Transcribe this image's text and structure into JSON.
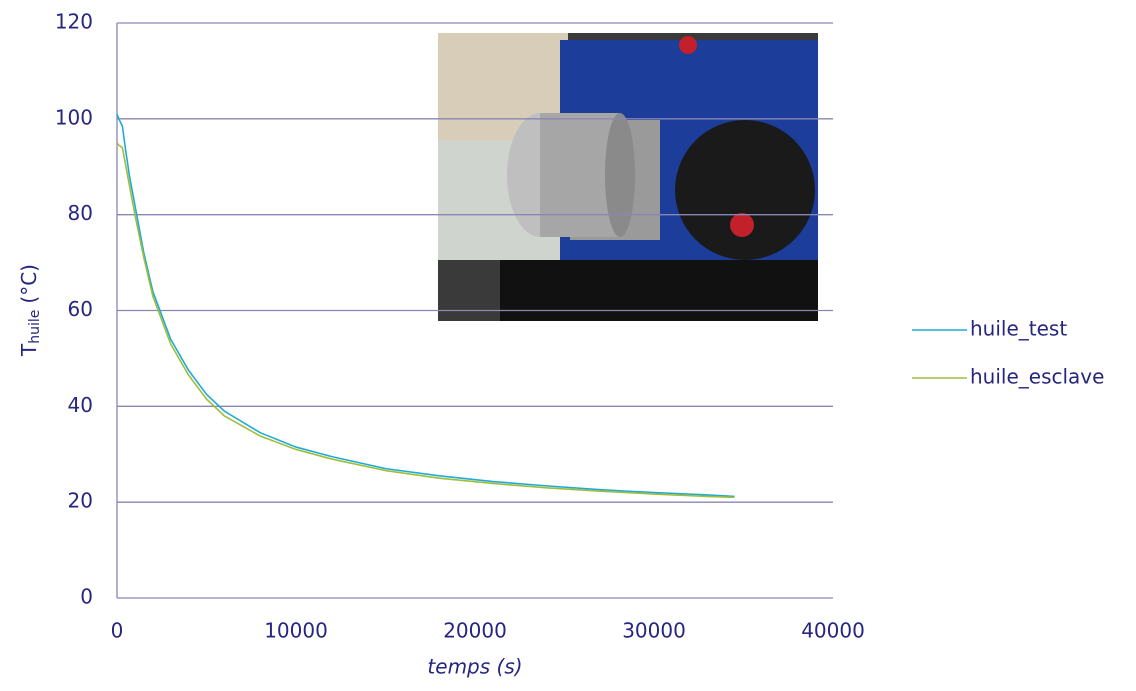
{
  "chart_data": {
    "type": "line",
    "xlabel": "temps (s)",
    "ylabel": {
      "main": "T",
      "sub": "huile",
      "unit": "(°C)"
    },
    "x": [
      0,
      100,
      300,
      500,
      700,
      1000,
      1500,
      2000,
      3000,
      4000,
      5000,
      6000,
      8000,
      10000,
      12000,
      15000,
      18000,
      21000,
      24000,
      27000,
      30000,
      33000,
      34500
    ],
    "series": [
      {
        "name": "huile_test",
        "color": "#22aad6",
        "values": [
          101,
          100,
          98.5,
          93,
          88,
          82,
          72,
          64,
          54,
          47.5,
          42.5,
          39,
          34.5,
          31.5,
          29.5,
          27,
          25.5,
          24.3,
          23.4,
          22.6,
          22,
          21.5,
          21.2
        ]
      },
      {
        "name": "huile_esclave",
        "color": "#9dbf3a",
        "values": [
          95,
          94.5,
          94,
          90,
          86,
          80,
          71,
          63,
          53,
          46.5,
          41.5,
          38,
          33.8,
          31,
          29,
          26.6,
          25,
          23.9,
          23,
          22.3,
          21.7,
          21.2,
          21
        ]
      }
    ],
    "xlim": [
      0,
      40000
    ],
    "xticks": [
      0,
      10000,
      20000,
      30000,
      40000
    ],
    "ylim": [
      0,
      120
    ],
    "yticks": [
      0,
      20,
      40,
      60,
      80,
      100,
      120
    ],
    "grid": true,
    "legend": "right"
  }
}
